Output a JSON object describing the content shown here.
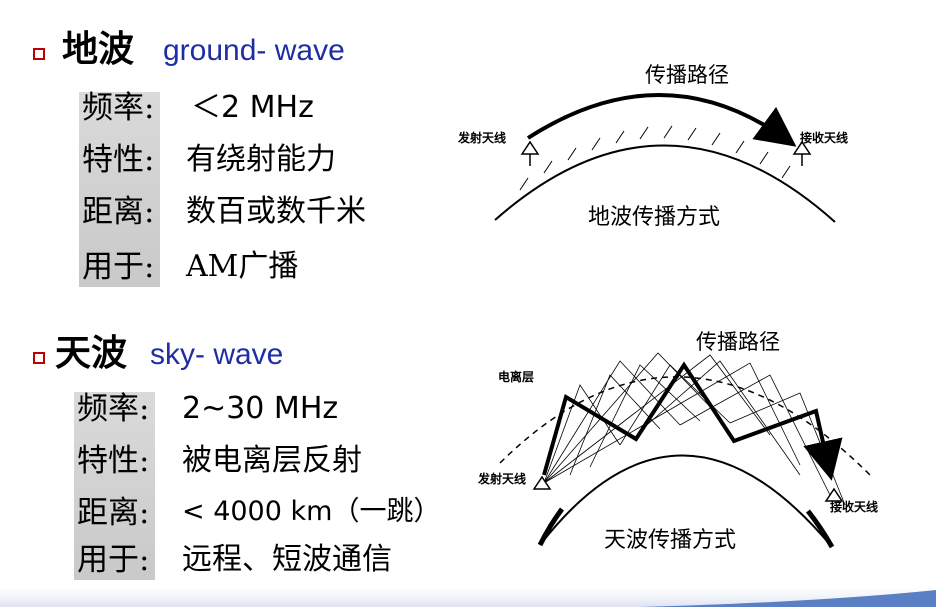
{
  "ground": {
    "title_cn": "地波",
    "title_en": "ground- wave",
    "props": [
      {
        "label": "频率:",
        "value": "＜2 MHz"
      },
      {
        "label": "特性:",
        "value": "有绕射能力"
      },
      {
        "label": "距离:",
        "value": "数百或数千米"
      },
      {
        "label": "用于:",
        "value": "AM广播"
      }
    ],
    "diagram": {
      "path_label": "传播路径",
      "tx_label": "发射天线",
      "rx_label": "接收天线",
      "caption": "地波传播方式"
    }
  },
  "sky": {
    "title_cn": "天波",
    "title_en": "sky- wave",
    "props": [
      {
        "label": "频率:",
        "value": "2~30 MHz"
      },
      {
        "label": "特性:",
        "value": "被电离层反射"
      },
      {
        "label": "距离:",
        "value": "< 4000 km（一跳）"
      },
      {
        "label": "用于:",
        "value": "远程、短波通信"
      }
    ],
    "diagram": {
      "path_label": "传播路径",
      "ionosphere_label": "电离层",
      "tx_label": "发射天线",
      "rx_label": "接收天线",
      "caption": "天波传播方式"
    }
  },
  "colors": {
    "bullet": "#c00000",
    "english_title": "#1f2fa3",
    "label_background": "#cfcfcf"
  }
}
